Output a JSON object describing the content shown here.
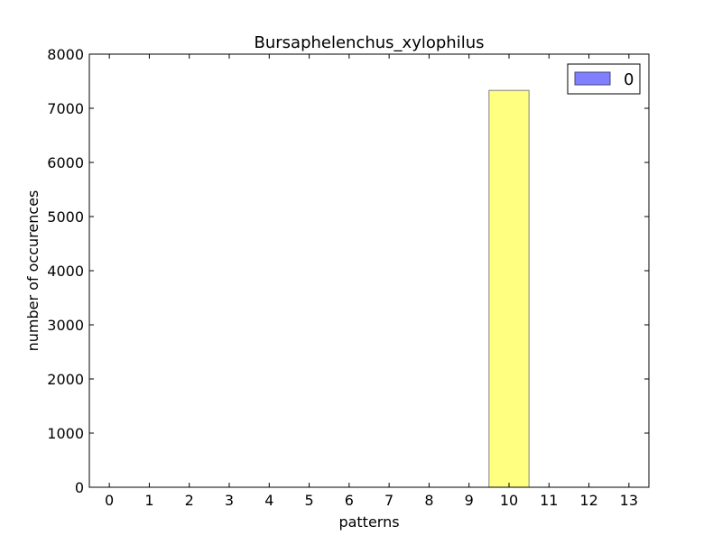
{
  "chart_data": {
    "type": "bar",
    "title": "Bursaphelenchus_xylophilus",
    "xlabel": "patterns",
    "ylabel": "number of occurences",
    "categories": [
      "0",
      "1",
      "2",
      "3",
      "4",
      "5",
      "6",
      "7",
      "8",
      "9",
      "10",
      "11",
      "12",
      "13"
    ],
    "series": [
      {
        "name": "0",
        "values": [
          0,
          0,
          0,
          0,
          0,
          0,
          0,
          0,
          0,
          0,
          7330,
          0,
          0,
          0
        ],
        "legend_color": "#8080ff",
        "bar_color": "#ffff80",
        "edge_color": "#7f7f7f"
      }
    ],
    "ylim": [
      0,
      8000
    ],
    "yticks": [
      0,
      1000,
      2000,
      3000,
      4000,
      5000,
      6000,
      7000,
      8000
    ],
    "grid": false,
    "legend_position": "top-right"
  }
}
